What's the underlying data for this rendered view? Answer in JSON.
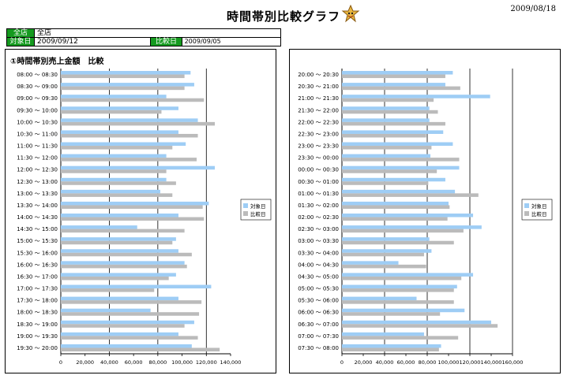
{
  "header": {
    "title": "時間帯別比較グラフ",
    "report_date": "2009/08/18",
    "mascot_icon": "cartoon-character-icon"
  },
  "info": {
    "store_label": "全店",
    "store_value": "全店",
    "target_label": "対象日",
    "target_value": "2009/09/12",
    "compare_label": "比較日",
    "compare_value": "2009/09/05"
  },
  "chart_heading": "①時間帯別売上金額　比較",
  "colors": {
    "target": "#9ecdf5",
    "compare": "#bbbbbb"
  },
  "chart_data": [
    {
      "type": "bar",
      "orientation": "horizontal",
      "categories": [
        "08:00 ～ 08:30",
        "08:30 ～ 09:00",
        "09:00 ～ 09:30",
        "09:30 ～ 10:00",
        "10:00 ～ 10:30",
        "10:30 ～ 11:00",
        "11:00 ～ 11:30",
        "11:30 ～ 12:00",
        "12:00 ～ 12:30",
        "12:30 ～ 13:00",
        "13:00 ～ 13:30",
        "13:30 ～ 14:00",
        "14:00 ～ 14:30",
        "14:30 ～ 15:00",
        "15:00 ～ 15:30",
        "15:30 ～ 16:00",
        "16:00 ～ 16:30",
        "16:30 ～ 17:00",
        "17:00 ～ 17:30",
        "17:30 ～ 18:00",
        "18:00 ～ 18:30",
        "18:30 ～ 19:00",
        "19:00 ～ 19:30",
        "19:30 ～ 20:00"
      ],
      "series": [
        {
          "name": "対象日",
          "values": [
            107000,
            110000,
            87000,
            97000,
            113000,
            97000,
            103000,
            87000,
            127000,
            87000,
            82000,
            122000,
            97000,
            63000,
            95000,
            97000,
            102000,
            95000,
            124000,
            97000,
            74000,
            110000,
            97000,
            108000
          ]
        },
        {
          "name": "比較日",
          "values": [
            102000,
            102000,
            118000,
            83000,
            127000,
            113000,
            92000,
            112000,
            87000,
            95000,
            92000,
            117000,
            118000,
            102000,
            92000,
            108000,
            104000,
            89000,
            77000,
            116000,
            114000,
            102000,
            113000,
            131000
          ]
        }
      ],
      "xlim": [
        0,
        140000
      ],
      "xticks": [
        "0",
        "20,000",
        "40,000",
        "60,000",
        "80,000",
        "100,000",
        "120,000",
        "140,000"
      ],
      "legend": "right",
      "grid": true
    },
    {
      "type": "bar",
      "orientation": "horizontal",
      "categories": [
        "20:00 ～ 20:30",
        "20:30 ～ 21:00",
        "21:00 ～ 21:30",
        "21:30 ～ 22:00",
        "22:00 ～ 22:30",
        "22:30 ～ 23:00",
        "23:00 ～ 23:30",
        "23:30 ～ 00:00",
        "00:00 ～ 00:30",
        "00:30 ～ 01:00",
        "01:00 ～ 01:30",
        "01:30 ～ 02:00",
        "02:00 ～ 02:30",
        "02:30 ～ 03:00",
        "03:00 ～ 03:30",
        "03:30 ～ 04:00",
        "04:00 ～ 04:30",
        "04:30 ～ 05:00",
        "05:00 ～ 05:30",
        "05:30 ～ 06:00",
        "06:00 ～ 06:30",
        "06:30 ～ 07:00",
        "07:00 ～ 07:30",
        "07:30 ～ 08:00"
      ],
      "series": [
        {
          "name": "対象日",
          "values": [
            104000,
            97000,
            139000,
            82000,
            82000,
            95000,
            104000,
            83000,
            110000,
            97000,
            106000,
            100000,
            123000,
            131000,
            82000,
            84000,
            53000,
            123000,
            108000,
            70000,
            115000,
            140000,
            77000,
            93000
          ]
        },
        {
          "name": "比較日",
          "values": [
            97000,
            111000,
            86000,
            90000,
            97000,
            79000,
            84000,
            110000,
            89000,
            81000,
            128000,
            101000,
            99000,
            114000,
            105000,
            77000,
            79000,
            112000,
            105000,
            105000,
            92000,
            146000,
            109000,
            91000
          ]
        }
      ],
      "xlim": [
        0,
        160000
      ],
      "xticks": [
        "0",
        "20,000",
        "40,000",
        "60,000",
        "80,000",
        "100,000",
        "120,000",
        "140,000",
        "160,000"
      ],
      "legend": "right",
      "grid": true
    }
  ]
}
